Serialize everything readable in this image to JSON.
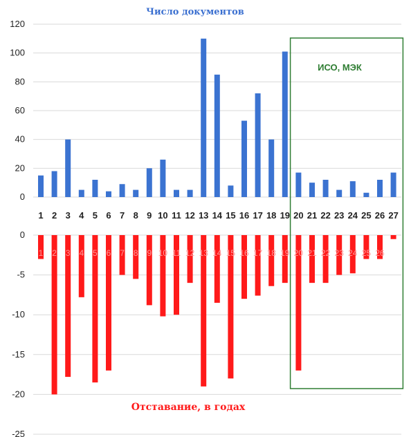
{
  "chart_data": [
    {
      "type": "bar",
      "title": "Число документов",
      "categories": [
        "1",
        "2",
        "3",
        "4",
        "5",
        "6",
        "7",
        "8",
        "9",
        "10",
        "11",
        "12",
        "13",
        "14",
        "15",
        "16",
        "17",
        "18",
        "19",
        "20",
        "21",
        "22",
        "23",
        "24",
        "25",
        "26",
        "27"
      ],
      "values": [
        15,
        18,
        40,
        5,
        12,
        4,
        9,
        5,
        20,
        26,
        5,
        5,
        110,
        85,
        8,
        53,
        72,
        40,
        101,
        17,
        10,
        12,
        5,
        11,
        3,
        12,
        17
      ],
      "ylim": [
        0,
        120
      ],
      "yticks": [
        0,
        20,
        40,
        60,
        80,
        100,
        120
      ],
      "grid": true,
      "colors": {
        "bars": "#3b73d1",
        "grid": "#d9d9d9",
        "annotation_box": "#2e7d32"
      },
      "annotation": {
        "text": "ИСО, МЭК",
        "from_category": "20",
        "to_category": "27"
      }
    },
    {
      "type": "bar",
      "title": "Отставание, в годах",
      "categories": [
        "1",
        "2",
        "3",
        "4",
        "5",
        "6",
        "7",
        "8",
        "9",
        "10",
        "11",
        "12",
        "13",
        "14",
        "15",
        "16",
        "17",
        "18",
        "19",
        "20",
        "21",
        "22",
        "23",
        "24",
        "25",
        "26",
        "27"
      ],
      "values": [
        -3,
        -20,
        -17.8,
        -7.8,
        -18.5,
        -17,
        -5,
        -5.5,
        -8.8,
        -10.2,
        -10,
        -6,
        -19,
        -8.5,
        -18,
        -8,
        -7.6,
        -6.4,
        -6,
        -17,
        -6,
        -6,
        -5,
        -4.8,
        -3,
        -3,
        -0.5
      ],
      "ylim": [
        -25,
        0
      ],
      "yticks": [
        0,
        -5,
        -10,
        -15,
        -20,
        -25
      ],
      "grid": true,
      "colors": {
        "bars": "#ff1a1a",
        "grid": "#d9d9d9"
      }
    }
  ]
}
